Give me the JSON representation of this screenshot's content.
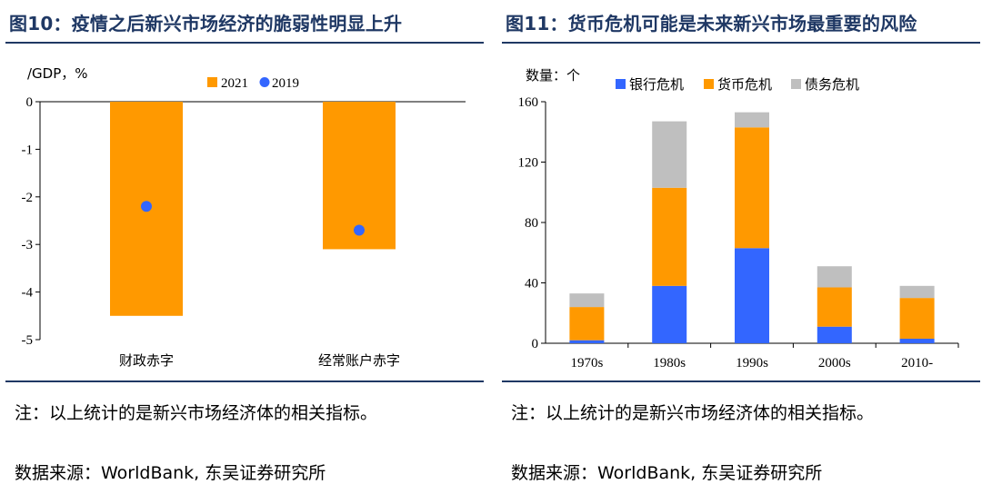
{
  "left": {
    "title": "图10：疫情之后新兴市场经济的脆弱性明显上升",
    "note": "注：以上统计的是新兴市场经济体的相关指标。",
    "source": "数据来源：WorldBank, 东吴证券研究所"
  },
  "right": {
    "title": "图11：货币危机可能是未来新兴市场最重要的风险",
    "note": "注：以上统计的是新兴市场经济体的相关指标。",
    "source": "数据来源：WorldBank, 东吴证券研究所"
  },
  "colors": {
    "orange": "#ff9900",
    "blue": "#3366ff",
    "gray": "#bfbfbf",
    "title": "#1f3864"
  },
  "chart_data": [
    {
      "type": "bar",
      "ylabel": "/GDP，%",
      "categories": [
        "财政赤字",
        "经常账户赤字"
      ],
      "series": [
        {
          "name": "2021",
          "type": "bar",
          "color": "#ff9900",
          "values": [
            -4.5,
            -3.1
          ]
        },
        {
          "name": "2019",
          "type": "scatter",
          "color": "#3366ff",
          "values": [
            -2.2,
            -2.7
          ]
        }
      ],
      "ylim": [
        -5,
        0
      ],
      "yticks": [
        "0",
        "-1",
        "-2",
        "-3",
        "-4",
        "-5"
      ],
      "legend": "top-center",
      "grid": false
    },
    {
      "type": "bar",
      "stacked": true,
      "ylabel": "数量：个",
      "categories": [
        "1970s",
        "1980s",
        "1990s",
        "2000s",
        "2010-"
      ],
      "series": [
        {
          "name": "银行危机",
          "color": "#3366ff",
          "values": [
            2,
            38,
            63,
            11,
            3
          ]
        },
        {
          "name": "货币危机",
          "color": "#ff9900",
          "values": [
            22,
            65,
            80,
            26,
            27
          ]
        },
        {
          "name": "债务危机",
          "color": "#bfbfbf",
          "values": [
            9,
            44,
            10,
            14,
            8
          ]
        }
      ],
      "ylim": [
        0,
        160
      ],
      "yticks": [
        "0",
        "40",
        "80",
        "120",
        "160"
      ],
      "legend": "top-center",
      "grid": false
    }
  ]
}
